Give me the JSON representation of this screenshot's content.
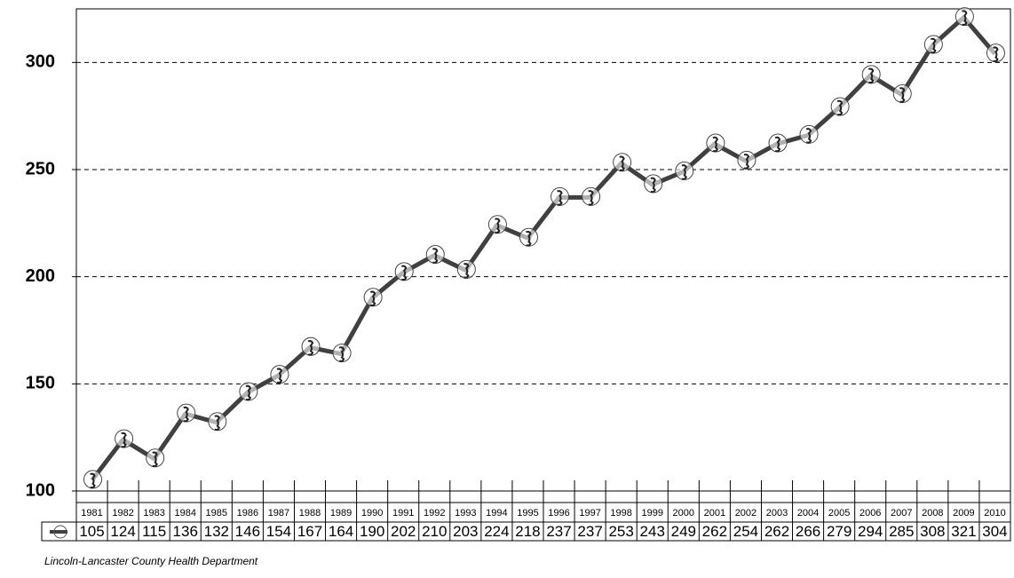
{
  "chart_data": {
    "type": "line",
    "categories": [
      "1981",
      "1982",
      "1983",
      "1984",
      "1985",
      "1986",
      "1987",
      "1988",
      "1989",
      "1990",
      "1991",
      "1992",
      "1993",
      "1994",
      "1995",
      "1996",
      "1997",
      "1998",
      "1999",
      "2000",
      "2001",
      "2002",
      "2003",
      "2004",
      "2005",
      "2006",
      "2007",
      "2008",
      "2009",
      "2010"
    ],
    "values": [
      105,
      124,
      115,
      136,
      132,
      146,
      154,
      167,
      164,
      190,
      202,
      210,
      203,
      224,
      218,
      237,
      237,
      253,
      243,
      249,
      262,
      254,
      262,
      266,
      279,
      294,
      285,
      308,
      321,
      304
    ],
    "color": "#404040",
    "ylim": [
      100,
      325
    ],
    "yticks": [
      100,
      150,
      200,
      250,
      300
    ],
    "grid": true,
    "source": "Lincoln-Lancaster County Health Department"
  }
}
